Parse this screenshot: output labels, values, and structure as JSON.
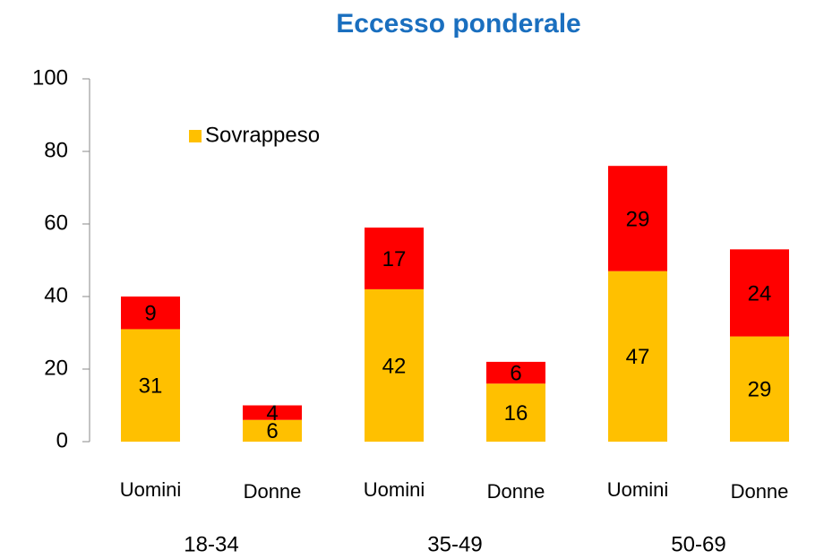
{
  "chart_data": {
    "type": "stacked_bar",
    "title": "Eccesso ponderale",
    "categories": [
      "Uomini",
      "Donne",
      "Uomini",
      "Donne",
      "Uomini",
      "Donne"
    ],
    "groups": [
      "18-34",
      "35-49",
      "50-69"
    ],
    "series": [
      {
        "name": "Sovrappeso",
        "color": "#ffc000",
        "values": [
          31,
          6,
          42,
          16,
          47,
          29
        ]
      },
      {
        "color": "#ff0000",
        "values": [
          9,
          4,
          17,
          6,
          29,
          24
        ]
      }
    ],
    "ylim": [
      0,
      100
    ],
    "yticks": [
      0,
      20,
      40,
      60,
      80,
      100
    ],
    "grid": false,
    "legend": "top-left"
  }
}
